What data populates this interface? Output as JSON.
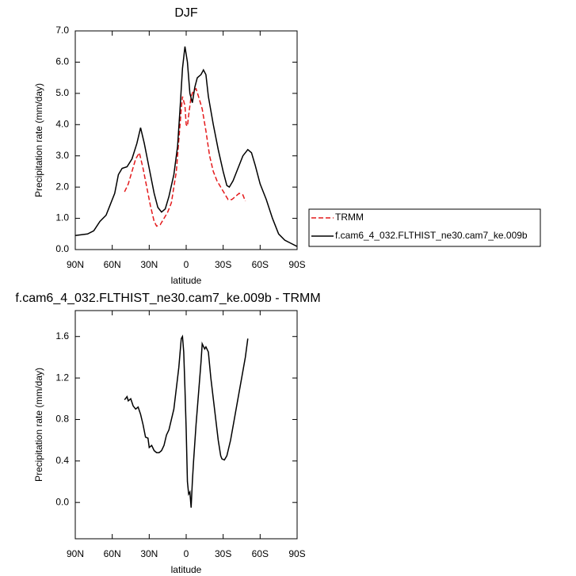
{
  "chart_data": [
    {
      "type": "line",
      "title": "DJF",
      "xlabel": "latitude",
      "ylabel": "Precipitation rate (mm/day)",
      "xlim": [
        90,
        -90
      ],
      "xticks": [
        {
          "value": 90,
          "label": "90N"
        },
        {
          "value": 60,
          "label": "60N"
        },
        {
          "value": 30,
          "label": "30N"
        },
        {
          "value": 0,
          "label": "0"
        },
        {
          "value": -30,
          "label": "30S"
        },
        {
          "value": -60,
          "label": "60S"
        },
        {
          "value": -90,
          "label": "90S"
        }
      ],
      "ylim": [
        0,
        7
      ],
      "yticks": [
        {
          "value": 0,
          "label": "0.0"
        },
        {
          "value": 1,
          "label": "1.0"
        },
        {
          "value": 2,
          "label": "2.0"
        },
        {
          "value": 3,
          "label": "3.0"
        },
        {
          "value": 4,
          "label": "4.0"
        },
        {
          "value": 5,
          "label": "5.0"
        },
        {
          "value": 6,
          "label": "6.0"
        },
        {
          "value": 7,
          "label": "7.0"
        }
      ],
      "legend": "right",
      "series": [
        {
          "name": "TRMM",
          "color": "#e41a1c",
          "dash": true,
          "x": [
            50,
            47,
            44,
            41,
            38,
            35,
            32,
            29,
            26,
            24,
            21,
            18,
            15,
            12,
            10,
            8,
            6,
            4,
            3,
            1,
            0,
            -1,
            -2,
            -4,
            -6,
            -8,
            -10,
            -13,
            -16,
            -19,
            -22,
            -25,
            -28,
            -31,
            -34,
            -37,
            -40,
            -43,
            -46,
            -48
          ],
          "values": [
            1.85,
            2.1,
            2.5,
            2.9,
            3.1,
            2.6,
            2.0,
            1.4,
            0.9,
            0.75,
            0.8,
            1.0,
            1.2,
            1.5,
            2.0,
            2.5,
            3.5,
            4.5,
            4.9,
            4.6,
            4.0,
            3.95,
            4.3,
            4.9,
            5.1,
            5.15,
            4.9,
            4.5,
            3.8,
            3.0,
            2.5,
            2.2,
            2.0,
            1.8,
            1.6,
            1.6,
            1.7,
            1.8,
            1.75,
            1.55
          ]
        },
        {
          "name": "f.cam6_4_032.FLTHIST_ne30.cam7_ke.009b",
          "color": "#000000",
          "dash": false,
          "x": [
            90,
            80,
            75,
            70,
            65,
            62,
            58,
            55,
            52,
            48,
            44,
            40,
            37,
            34,
            30,
            26,
            23,
            20,
            17,
            14,
            10,
            7,
            5,
            3,
            1,
            -1,
            -3,
            -5,
            -7,
            -9,
            -12,
            -14,
            -16,
            -18,
            -22,
            -26,
            -30,
            -33,
            -35,
            -38,
            -42,
            -46,
            -50,
            -53,
            -56,
            -60,
            -65,
            -70,
            -75,
            -80,
            -85,
            -90
          ],
          "values": [
            0.45,
            0.5,
            0.6,
            0.9,
            1.1,
            1.4,
            1.8,
            2.4,
            2.6,
            2.65,
            2.9,
            3.4,
            3.9,
            3.4,
            2.6,
            1.8,
            1.35,
            1.2,
            1.3,
            1.7,
            2.4,
            3.3,
            4.5,
            5.8,
            6.5,
            6.0,
            5.0,
            4.7,
            5.2,
            5.5,
            5.6,
            5.75,
            5.6,
            4.9,
            4.0,
            3.2,
            2.5,
            2.05,
            2.0,
            2.2,
            2.6,
            3.0,
            3.2,
            3.1,
            2.7,
            2.1,
            1.6,
            1.0,
            0.5,
            0.3,
            0.2,
            0.1
          ]
        }
      ]
    },
    {
      "type": "line",
      "title": "f.cam6_4_032.FLTHIST_ne30.cam7_ke.009b - TRMM",
      "xlabel": "latitude",
      "ylabel": "Precipitation rate (mm/day)",
      "xlim": [
        90,
        -90
      ],
      "xticks": [
        {
          "value": 90,
          "label": "90N"
        },
        {
          "value": 60,
          "label": "60N"
        },
        {
          "value": 30,
          "label": "30N"
        },
        {
          "value": 0,
          "label": "0"
        },
        {
          "value": -30,
          "label": "30S"
        },
        {
          "value": -60,
          "label": "60S"
        },
        {
          "value": -90,
          "label": "90S"
        }
      ],
      "ylim": [
        -0.35,
        1.85
      ],
      "yticks": [
        {
          "value": 0,
          "label": "0.0"
        },
        0.4,
        0.8,
        1.2,
        1.6
      ],
      "color": "#000000",
      "x": [
        50,
        48,
        47,
        45,
        43,
        41,
        39,
        37,
        35,
        33,
        31,
        30,
        28,
        26,
        24,
        22,
        20,
        18,
        16,
        14,
        12,
        10,
        8,
        6,
        4,
        3,
        2,
        1,
        0,
        -1,
        -2,
        -3,
        -4,
        -5,
        -6,
        -8,
        -10,
        -12,
        -13,
        -15,
        -16,
        -18,
        -20,
        -22,
        -24,
        -26,
        -28,
        -29,
        -31,
        -33,
        -36,
        -39,
        -42,
        -45,
        -48,
        -50
      ],
      "values": [
        0.99,
        1.02,
        0.98,
        1.0,
        0.93,
        0.9,
        0.92,
        0.85,
        0.75,
        0.63,
        0.62,
        0.53,
        0.55,
        0.5,
        0.48,
        0.48,
        0.5,
        0.55,
        0.65,
        0.7,
        0.8,
        0.9,
        1.1,
        1.3,
        1.58,
        1.6,
        1.45,
        1.1,
        0.7,
        0.2,
        0.08,
        0.1,
        -0.05,
        0.2,
        0.4,
        0.75,
        1.05,
        1.35,
        1.53,
        1.48,
        1.5,
        1.45,
        1.2,
        1.0,
        0.8,
        0.6,
        0.45,
        0.42,
        0.41,
        0.45,
        0.6,
        0.8,
        1.0,
        1.2,
        1.4,
        1.58
      ]
    }
  ]
}
